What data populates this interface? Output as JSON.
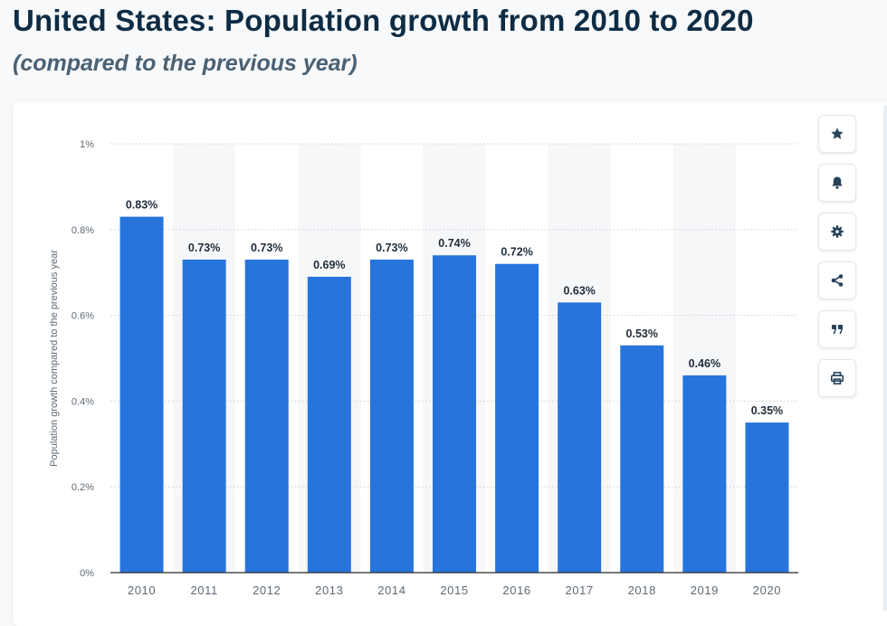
{
  "header": {
    "title": "United States: Population growth from 2010 to 2020",
    "subtitle": "(compared to the previous year)"
  },
  "toolbar": [
    {
      "icon": "star-icon",
      "name": "favorite-button"
    },
    {
      "icon": "bell-icon",
      "name": "notification-button"
    },
    {
      "icon": "gear-icon",
      "name": "settings-button"
    },
    {
      "icon": "share-icon",
      "name": "share-button"
    },
    {
      "icon": "quote-icon",
      "name": "cite-button"
    },
    {
      "icon": "print-icon",
      "name": "print-button"
    }
  ],
  "colors": {
    "bar": "#2774dd",
    "band": "#f6f7f9",
    "grid": "#c9ced4",
    "axis_text": "#5e6a75",
    "label_text": "#1f2d3a",
    "icon": "#27435c"
  },
  "chart_data": {
    "type": "bar",
    "categories": [
      "2010",
      "2011",
      "2012",
      "2013",
      "2014",
      "2015",
      "2016",
      "2017",
      "2018",
      "2019",
      "2020"
    ],
    "values": [
      0.83,
      0.73,
      0.73,
      0.69,
      0.73,
      0.74,
      0.72,
      0.63,
      0.53,
      0.46,
      0.35
    ],
    "data_labels": [
      "0.83%",
      "0.73%",
      "0.73%",
      "0.69%",
      "0.73%",
      "0.74%",
      "0.72%",
      "0.63%",
      "0.53%",
      "0.46%",
      "0.35%"
    ],
    "ylabel": "Population growth compared to the previous year",
    "xlabel": "",
    "ylim": [
      0,
      1
    ],
    "yticks": [
      0,
      0.2,
      0.4,
      0.6,
      0.8,
      1
    ],
    "ytick_labels": [
      "0%",
      "0.2%",
      "0.4%",
      "0.6%",
      "0.8%",
      "1%"
    ],
    "grid": true,
    "legend": false
  }
}
